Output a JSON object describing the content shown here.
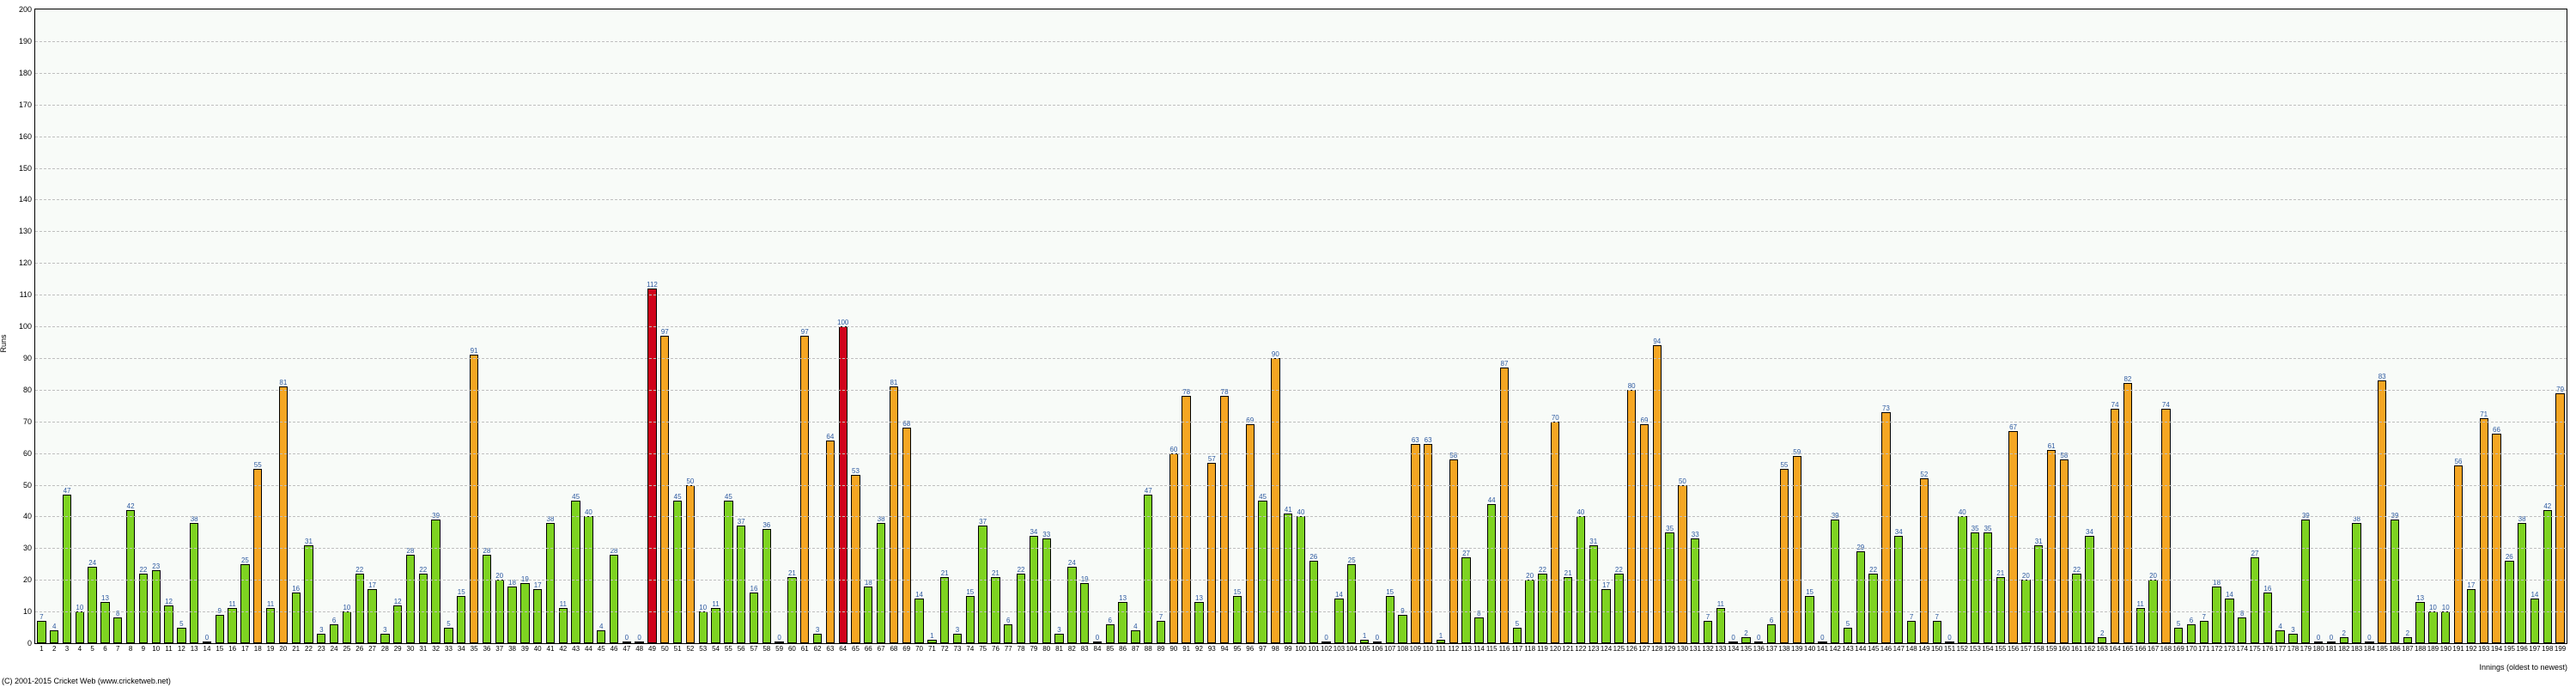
{
  "chart": {
    "type": "bar",
    "ylabel": "Runs",
    "xlabel": "Innings (oldest to newest)",
    "copyright": "(C) 2001-2015 Cricket Web (www.cricketweb.net)",
    "ylim": [
      0,
      200
    ],
    "ytick_step": 10,
    "background_color": "#f8fbf8",
    "grid_color": "#bfbfbf",
    "bar_colors": {
      "low": "#7ed321",
      "mid": "#f5a623",
      "high": "#d0021b"
    },
    "bar_border": "#000000",
    "label_color": "#2e5aa0",
    "label_fontsize": 8,
    "tick_fontsize": 9,
    "bar_width_ratio": 0.7,
    "values": [
      7,
      4,
      47,
      10,
      24,
      13,
      8,
      42,
      22,
      23,
      12,
      5,
      38,
      0,
      9,
      11,
      25,
      55,
      11,
      81,
      16,
      31,
      3,
      6,
      10,
      22,
      17,
      3,
      12,
      28,
      22,
      39,
      5,
      15,
      91,
      28,
      20,
      18,
      19,
      17,
      38,
      11,
      45,
      40,
      4,
      28,
      0,
      0,
      112,
      97,
      45,
      50,
      10,
      11,
      45,
      37,
      16,
      36,
      0,
      21,
      97,
      3,
      64,
      100,
      53,
      18,
      38,
      81,
      68,
      14,
      1,
      21,
      3,
      15,
      37,
      21,
      6,
      22,
      34,
      33,
      3,
      24,
      19,
      0,
      6,
      13,
      4,
      47,
      7,
      60,
      78,
      13,
      57,
      78,
      15,
      69,
      45,
      90,
      41,
      40,
      26,
      0,
      14,
      25,
      1,
      0,
      15,
      9,
      63,
      63,
      1,
      58,
      27,
      8,
      44,
      87,
      5,
      20,
      22,
      70,
      21,
      40,
      31,
      17,
      22,
      80,
      69,
      94,
      35,
      50,
      33,
      7,
      11,
      0,
      2,
      0,
      6,
      55,
      59,
      15,
      0,
      39,
      5,
      29,
      22,
      73,
      34,
      7,
      52,
      7,
      0,
      40,
      35,
      35,
      21,
      67,
      20,
      31,
      61,
      58,
      22,
      34,
      2,
      74,
      82,
      11,
      20,
      74,
      5,
      6,
      7,
      18,
      14,
      8,
      27,
      16,
      4,
      3,
      39,
      0,
      0,
      2,
      38,
      0,
      83,
      39,
      2,
      13,
      10,
      10,
      56,
      17,
      71,
      66,
      26,
      38,
      14,
      42,
      79
    ],
    "categories_start": 1
  }
}
